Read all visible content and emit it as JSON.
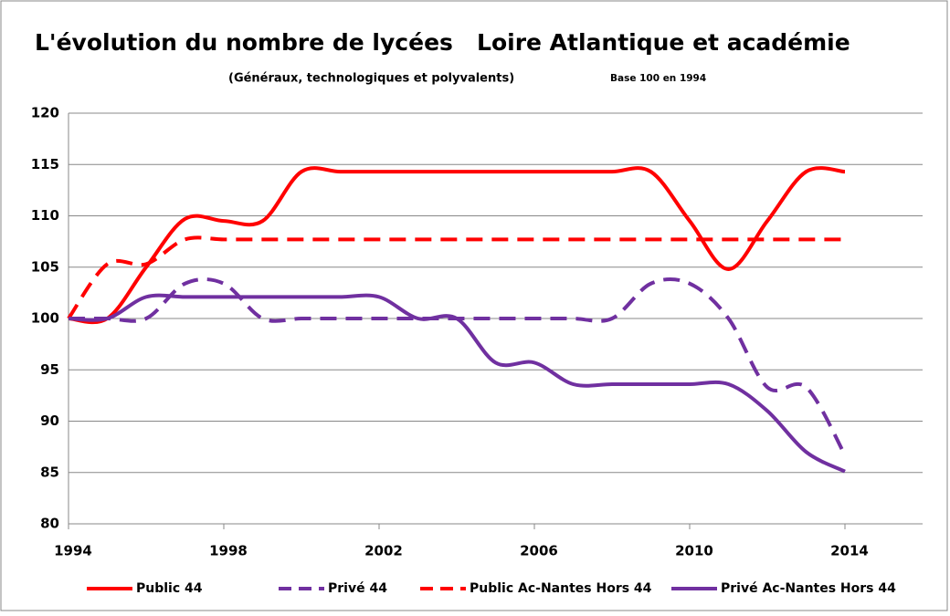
{
  "chart_data": {
    "type": "line",
    "title": "L'évolution du nombre de lycées   Loire Atlantique et académie",
    "subtitle": "(Généraux, technologiques et polyvalents)",
    "note": "Base 100 en 1994",
    "x": [
      1994,
      1995,
      1996,
      1997,
      1998,
      1999,
      2000,
      2001,
      2002,
      2003,
      2004,
      2005,
      2006,
      2007,
      2008,
      2009,
      2010,
      2011,
      2012,
      2013,
      2014
    ],
    "series": [
      {
        "name": "Public 44",
        "color": "#ff0000",
        "dashed": false,
        "values": [
          100,
          100,
          105,
          109.7,
          109.5,
          109.5,
          114.3,
          114.3,
          114.3,
          114.3,
          114.3,
          114.3,
          114.3,
          114.3,
          114.3,
          114.3,
          109.5,
          104.8,
          109.5,
          114.3,
          114.3
        ]
      },
      {
        "name": "Privé 44",
        "color": "#7030a0",
        "dashed": true,
        "values": [
          100,
          100,
          100,
          103.4,
          103.4,
          100,
          100,
          100,
          100,
          100,
          100,
          100,
          100,
          100,
          100,
          103.4,
          103.4,
          100,
          93.3,
          93.3,
          86.7
        ]
      },
      {
        "name": "Public Ac-Nantes Hors 44",
        "color": "#ff0000",
        "dashed": true,
        "values": [
          100,
          105.3,
          105.3,
          107.7,
          107.7,
          107.7,
          107.7,
          107.7,
          107.7,
          107.7,
          107.7,
          107.7,
          107.7,
          107.7,
          107.7,
          107.7,
          107.7,
          107.7,
          107.7,
          107.7,
          107.7
        ]
      },
      {
        "name": "Privé Ac-Nantes Hors 44",
        "color": "#7030a0",
        "dashed": false,
        "values": [
          100,
          100,
          102.1,
          102.1,
          102.1,
          102.1,
          102.1,
          102.1,
          102.1,
          100,
          100,
          95.7,
          95.7,
          93.6,
          93.6,
          93.6,
          93.6,
          93.6,
          91,
          87,
          85.1
        ]
      }
    ],
    "xlim": [
      1994,
      2016
    ],
    "xticks": [
      1994,
      1998,
      2002,
      2006,
      2010,
      2014
    ],
    "ylim": [
      80,
      120
    ],
    "yticks": [
      80,
      85,
      90,
      95,
      100,
      105,
      110,
      115,
      120
    ],
    "grid": true,
    "legend": "bottom"
  }
}
